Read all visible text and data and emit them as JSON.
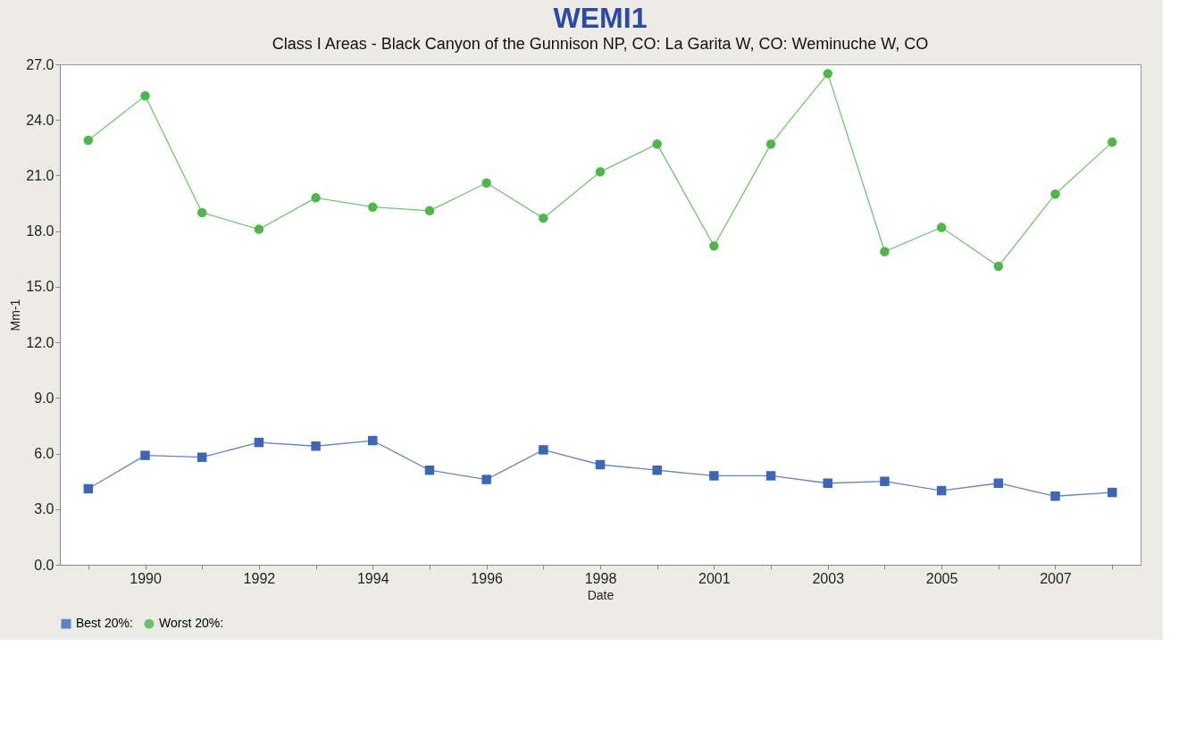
{
  "chart_data": {
    "type": "line",
    "title": "WEMI1",
    "subtitle": "Class I Areas - Black Canyon of the Gunnison NP, CO: La Garita W, CO: Weminuche W, CO",
    "xlabel": "Date",
    "ylabel": "Mm-1",
    "categories": [
      null,
      "1990",
      null,
      "1992",
      null,
      "1994",
      null,
      "1996",
      null,
      "1998",
      null,
      "2001",
      null,
      "2003",
      null,
      "2005",
      null,
      "2007",
      null
    ],
    "series": [
      {
        "name": "Best 20%:",
        "color": "#3b67b8",
        "marker": "square",
        "values": [
          4.1,
          5.9,
          5.8,
          6.6,
          6.4,
          6.7,
          5.1,
          4.6,
          6.2,
          5.4,
          5.1,
          4.8,
          4.8,
          4.4,
          4.5,
          4.0,
          4.4,
          3.7,
          3.9
        ]
      },
      {
        "name": "Worst 20%:",
        "color": "#4cb848",
        "marker": "circle",
        "values": [
          22.9,
          25.3,
          19.0,
          18.1,
          19.8,
          19.3,
          19.1,
          20.6,
          18.7,
          21.2,
          22.7,
          17.2,
          22.7,
          26.5,
          16.9,
          18.2,
          16.1,
          20.0,
          22.8
        ]
      }
    ],
    "ylim": [
      0,
      27
    ],
    "yticks": [
      {
        "value": 0,
        "label": "0.0"
      },
      {
        "value": 3,
        "label": "3.0"
      },
      {
        "value": 6,
        "label": "6.0"
      },
      {
        "value": 9,
        "label": "9.0"
      },
      {
        "value": 12,
        "label": "12.0"
      },
      {
        "value": 15,
        "label": "15.0"
      },
      {
        "value": 18,
        "label": "18.0"
      },
      {
        "value": 21,
        "label": "21.0"
      },
      {
        "value": 24,
        "label": "24.0"
      },
      {
        "value": 27,
        "label": "27.0"
      }
    ],
    "grid": false,
    "legend": "bottom",
    "line_style": "solid"
  }
}
